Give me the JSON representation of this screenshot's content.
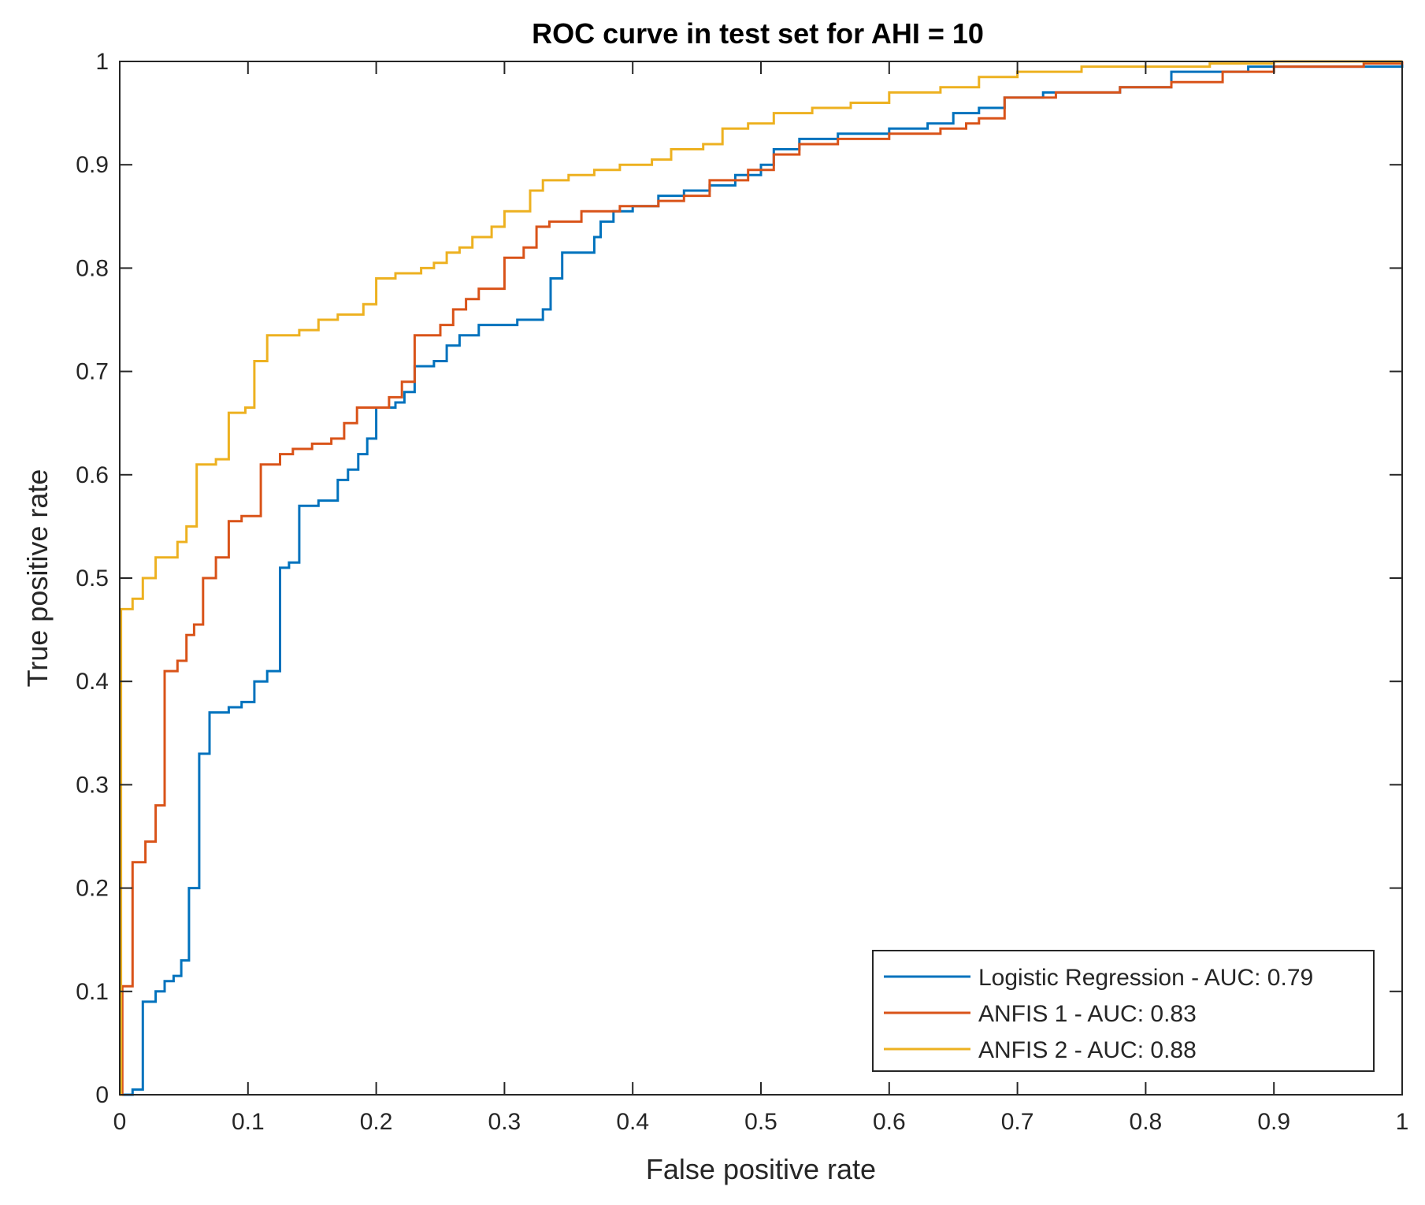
{
  "chart_data": {
    "type": "line",
    "title": "ROC curve in test set for AHI = 10",
    "xlabel": "False positive rate",
    "ylabel": "True positive rate",
    "xlim": [
      0,
      1
    ],
    "ylim": [
      0,
      1
    ],
    "grid": false,
    "legend_position": "bottom-right",
    "x_ticks": [
      0,
      0.1,
      0.2,
      0.3,
      0.4,
      0.5,
      0.6,
      0.7,
      0.8,
      0.9,
      1
    ],
    "x_tick_labels": [
      "0",
      "0.1",
      "0.2",
      "0.3",
      "0.4",
      "0.5",
      "0.6",
      "0.7",
      "0.8",
      "0.9",
      "1"
    ],
    "y_ticks": [
      0,
      0.1,
      0.2,
      0.3,
      0.4,
      0.5,
      0.6,
      0.7,
      0.8,
      0.9,
      1
    ],
    "y_tick_labels": [
      "0",
      "0.1",
      "0.2",
      "0.3",
      "0.4",
      "0.5",
      "0.6",
      "0.7",
      "0.8",
      "0.9",
      "1"
    ],
    "series": [
      {
        "name": "Logistic Regression - AUC: 0.79",
        "color": "#0072BD",
        "points": [
          [
            0,
            0
          ],
          [
            0.01,
            0.005
          ],
          [
            0.018,
            0.01
          ],
          [
            0.018,
            0.09
          ],
          [
            0.028,
            0.1
          ],
          [
            0.035,
            0.11
          ],
          [
            0.042,
            0.115
          ],
          [
            0.048,
            0.13
          ],
          [
            0.054,
            0.2
          ],
          [
            0.062,
            0.33
          ],
          [
            0.07,
            0.37
          ],
          [
            0.085,
            0.375
          ],
          [
            0.095,
            0.38
          ],
          [
            0.105,
            0.4
          ],
          [
            0.115,
            0.41
          ],
          [
            0.125,
            0.51
          ],
          [
            0.132,
            0.515
          ],
          [
            0.14,
            0.57
          ],
          [
            0.155,
            0.575
          ],
          [
            0.17,
            0.595
          ],
          [
            0.178,
            0.605
          ],
          [
            0.186,
            0.62
          ],
          [
            0.193,
            0.635
          ],
          [
            0.2,
            0.665
          ],
          [
            0.215,
            0.67
          ],
          [
            0.222,
            0.68
          ],
          [
            0.23,
            0.705
          ],
          [
            0.245,
            0.71
          ],
          [
            0.255,
            0.725
          ],
          [
            0.265,
            0.735
          ],
          [
            0.28,
            0.745
          ],
          [
            0.31,
            0.75
          ],
          [
            0.33,
            0.76
          ],
          [
            0.336,
            0.79
          ],
          [
            0.345,
            0.815
          ],
          [
            0.37,
            0.83
          ],
          [
            0.375,
            0.845
          ],
          [
            0.385,
            0.855
          ],
          [
            0.4,
            0.86
          ],
          [
            0.42,
            0.87
          ],
          [
            0.44,
            0.875
          ],
          [
            0.46,
            0.88
          ],
          [
            0.48,
            0.89
          ],
          [
            0.5,
            0.9
          ],
          [
            0.51,
            0.915
          ],
          [
            0.53,
            0.925
          ],
          [
            0.56,
            0.93
          ],
          [
            0.6,
            0.935
          ],
          [
            0.63,
            0.94
          ],
          [
            0.65,
            0.95
          ],
          [
            0.67,
            0.955
          ],
          [
            0.69,
            0.965
          ],
          [
            0.72,
            0.97
          ],
          [
            0.78,
            0.975
          ],
          [
            0.82,
            0.99
          ],
          [
            0.88,
            0.995
          ],
          [
            1,
            1
          ]
        ]
      },
      {
        "name": "ANFIS 1 - AUC: 0.83",
        "color": "#D95319",
        "points": [
          [
            0,
            0
          ],
          [
            0.002,
            0.105
          ],
          [
            0.01,
            0.11
          ],
          [
            0.01,
            0.225
          ],
          [
            0.02,
            0.245
          ],
          [
            0.028,
            0.28
          ],
          [
            0.035,
            0.41
          ],
          [
            0.045,
            0.42
          ],
          [
            0.052,
            0.445
          ],
          [
            0.058,
            0.455
          ],
          [
            0.065,
            0.5
          ],
          [
            0.075,
            0.52
          ],
          [
            0.085,
            0.555
          ],
          [
            0.095,
            0.56
          ],
          [
            0.11,
            0.61
          ],
          [
            0.125,
            0.62
          ],
          [
            0.135,
            0.625
          ],
          [
            0.15,
            0.63
          ],
          [
            0.165,
            0.635
          ],
          [
            0.175,
            0.65
          ],
          [
            0.185,
            0.665
          ],
          [
            0.21,
            0.675
          ],
          [
            0.22,
            0.69
          ],
          [
            0.23,
            0.735
          ],
          [
            0.25,
            0.745
          ],
          [
            0.26,
            0.76
          ],
          [
            0.27,
            0.77
          ],
          [
            0.28,
            0.78
          ],
          [
            0.3,
            0.81
          ],
          [
            0.315,
            0.82
          ],
          [
            0.325,
            0.84
          ],
          [
            0.335,
            0.845
          ],
          [
            0.36,
            0.855
          ],
          [
            0.39,
            0.86
          ],
          [
            0.42,
            0.865
          ],
          [
            0.44,
            0.87
          ],
          [
            0.46,
            0.885
          ],
          [
            0.49,
            0.895
          ],
          [
            0.51,
            0.91
          ],
          [
            0.53,
            0.92
          ],
          [
            0.56,
            0.925
          ],
          [
            0.6,
            0.93
          ],
          [
            0.64,
            0.935
          ],
          [
            0.66,
            0.94
          ],
          [
            0.67,
            0.945
          ],
          [
            0.69,
            0.965
          ],
          [
            0.73,
            0.97
          ],
          [
            0.78,
            0.975
          ],
          [
            0.82,
            0.98
          ],
          [
            0.86,
            0.99
          ],
          [
            0.9,
            0.995
          ],
          [
            0.97,
            0.998
          ],
          [
            1,
            1
          ]
        ]
      },
      {
        "name": "ANFIS 2 - AUC: 0.88",
        "color": "#EDB120",
        "points": [
          [
            0,
            0
          ],
          [
            0.001,
            0.47
          ],
          [
            0.01,
            0.48
          ],
          [
            0.018,
            0.5
          ],
          [
            0.028,
            0.52
          ],
          [
            0.045,
            0.535
          ],
          [
            0.052,
            0.55
          ],
          [
            0.06,
            0.61
          ],
          [
            0.075,
            0.615
          ],
          [
            0.085,
            0.66
          ],
          [
            0.098,
            0.665
          ],
          [
            0.105,
            0.71
          ],
          [
            0.115,
            0.735
          ],
          [
            0.14,
            0.74
          ],
          [
            0.155,
            0.75
          ],
          [
            0.17,
            0.755
          ],
          [
            0.19,
            0.765
          ],
          [
            0.2,
            0.79
          ],
          [
            0.215,
            0.795
          ],
          [
            0.235,
            0.8
          ],
          [
            0.245,
            0.805
          ],
          [
            0.255,
            0.815
          ],
          [
            0.265,
            0.82
          ],
          [
            0.275,
            0.83
          ],
          [
            0.29,
            0.84
          ],
          [
            0.3,
            0.855
          ],
          [
            0.32,
            0.875
          ],
          [
            0.33,
            0.885
          ],
          [
            0.35,
            0.89
          ],
          [
            0.37,
            0.895
          ],
          [
            0.39,
            0.9
          ],
          [
            0.415,
            0.905
          ],
          [
            0.43,
            0.915
          ],
          [
            0.455,
            0.92
          ],
          [
            0.47,
            0.935
          ],
          [
            0.49,
            0.94
          ],
          [
            0.51,
            0.95
          ],
          [
            0.54,
            0.955
          ],
          [
            0.57,
            0.96
          ],
          [
            0.6,
            0.97
          ],
          [
            0.64,
            0.975
          ],
          [
            0.67,
            0.985
          ],
          [
            0.7,
            0.99
          ],
          [
            0.75,
            0.995
          ],
          [
            0.85,
            0.998
          ],
          [
            0.9,
            1
          ],
          [
            1,
            1
          ]
        ]
      }
    ]
  }
}
